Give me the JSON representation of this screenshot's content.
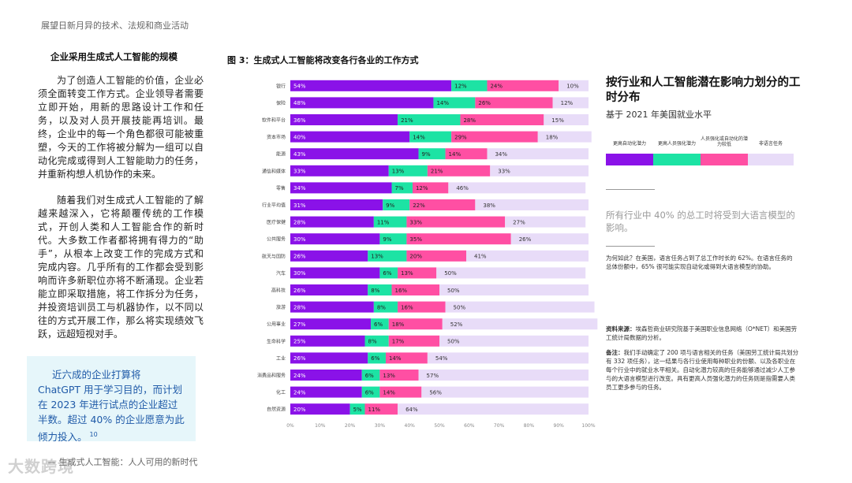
{
  "header": {
    "running_title": "展望日新月异的技术、法规和商业活动"
  },
  "left": {
    "section_title": "企业采用生成式人工智能的规模",
    "para1": "为了创造人工智能的价值，企业必须全面转变工作方式。企业领导者需要立即开始，用新的思路设计工作和任务，以及对人员开展技能再培训。最终，企业中的每一个角色都很可能被重塑，今天的工作将被分解为一组可以自动化完成或得到人工智能助力的任务，并重新构想人机协作的未来。",
    "para2": "随着我们对生成式人工智能的了解越来越深入，它将颠覆传统的工作模式，开创人类和人工智能合作的新时代。大多数工作者都将拥有得力的“助手”，从根本上改变工作的完成方式和完成内容。几乎所有的工作都会受到影响而许多新职位亦将不断涌现。企业若能立即采取措施，将工作拆分为任务，并投资培训员工与机器协作，以不同以往的方式开展工作，那么将实现绩效飞跃，远超短视对手。",
    "callout": "近六成的企业打算将 ChatGPT 用于学习目的，而计划在 2023 年进行试点的企业超过半数。超过 40% 的企业愿意为此倾力投入。",
    "callout_ref": "10"
  },
  "footer": {
    "text": "— 生成式人工智能：人人可用的新时代",
    "watermark": "大数跨境"
  },
  "colors": {
    "auto": "#8a12e8",
    "augment": "#1de3a4",
    "low": "#ff4fa3",
    "nonlang": "#e8dcf8"
  },
  "chart_data": {
    "type": "bar",
    "stacked": true,
    "orientation": "horizontal",
    "title": "图 3：生成式人工智能将改变各行各业的工作方式",
    "categories": [
      "银行",
      "保险",
      "软件和平台",
      "资本市场",
      "能源",
      "通信和媒体",
      "零售",
      "行业平均值",
      "医疗保健",
      "公共服务",
      "航天与国防",
      "汽车",
      "高科技",
      "旅游",
      "公用事业",
      "生命科学",
      "工业",
      "消费品和服务",
      "化工",
      "自然资源"
    ],
    "series": [
      {
        "name": "更高自动化潜力",
        "values": [
          54,
          48,
          36,
          40,
          43,
          33,
          34,
          31,
          28,
          30,
          26,
          30,
          26,
          28,
          27,
          25,
          26,
          24,
          24,
          20
        ]
      },
      {
        "name": "更高人员强化潜力",
        "values": [
          12,
          14,
          21,
          14,
          9,
          13,
          7,
          9,
          11,
          9,
          13,
          6,
          8,
          8,
          6,
          8,
          6,
          6,
          6,
          5
        ]
      },
      {
        "name": "人员强化或自动化的潜力较低",
        "values": [
          24,
          26,
          28,
          29,
          14,
          21,
          12,
          22,
          33,
          35,
          20,
          13,
          16,
          16,
          18,
          17,
          14,
          13,
          14,
          11
        ]
      },
      {
        "name": "非语言任务",
        "values": [
          10,
          12,
          15,
          18,
          34,
          33,
          46,
          38,
          27,
          26,
          41,
          50,
          50,
          50,
          52,
          50,
          54,
          57,
          56,
          64
        ]
      }
    ],
    "labeled_series": [
      0,
      1,
      2
    ],
    "remainder_labeled": true,
    "xlim": [
      0,
      100
    ],
    "xticks": [
      "0%",
      "10%",
      "20%",
      "30%",
      "40%",
      "50%",
      "60%",
      "70%",
      "80%",
      "90%",
      "100%"
    ]
  },
  "right": {
    "title": "按行业和人工智能潜在影响力划分的工时分布",
    "subtitle": "基于 2021 年美国就业水平",
    "legend": [
      {
        "label": "更高自动化潜力",
        "color": "#8a12e8"
      },
      {
        "label": "更高人员强化潜力",
        "color": "#1de3a4"
      },
      {
        "label": "人员强化或自动化的潜力较低",
        "color": "#ff4fa3"
      },
      {
        "label": "非语言任务",
        "color": "#e8dcf8"
      }
    ],
    "big_stat": "所有行业中 40% 的总工时将受到大语言模型的影响。",
    "note": "为何如此？在美国，语言任务占到了总工作时长的 62%。在语言任务的总体份额中，65% 很可能实现自动化或得到大语言模型的协助。",
    "source_label": "资料来源：",
    "source": "埃森哲商业研究院基于美国职业信息网络（O*NET）和美国劳工统计局数据的分析。",
    "remark_label": "备注：",
    "remark": "我们手动确定了 200 项与语言相关的任务（美国劳工统计局共划分有 332 项任务），这一结果与各行业使用每种职业的份额、以及各职业在每个行业中的就业水平相关。自动化潜力较高的任务能够通过减少人工参与的大语言模型进行改变。具有更高人员强化潜力的任务则是指需要人类员工更多参与的任务。"
  }
}
